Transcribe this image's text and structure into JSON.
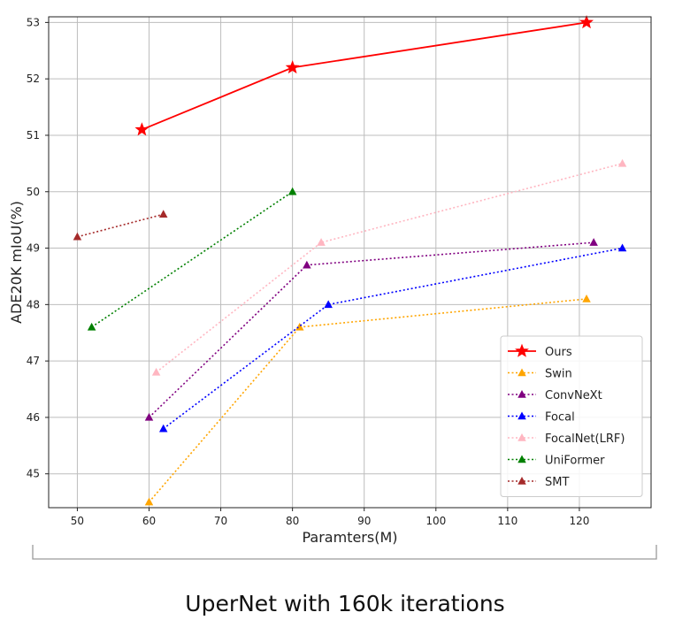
{
  "caption": "UperNet with 160k iterations",
  "chart_data": {
    "type": "line",
    "title": "",
    "xlabel": "Paramters(M)",
    "ylabel": "ADE20K mIoU(%)",
    "xlim": [
      46,
      130
    ],
    "ylim": [
      44.4,
      53.1
    ],
    "xticks": [
      50,
      60,
      70,
      80,
      90,
      100,
      110,
      120
    ],
    "yticks": [
      45,
      46,
      47,
      48,
      49,
      50,
      51,
      52,
      53
    ],
    "grid": true,
    "legend_position": "bottom-right",
    "series": [
      {
        "name": "Ours",
        "color": "#ff0000",
        "marker": "star",
        "dash": "solid",
        "x": [
          59,
          80,
          121
        ],
        "y": [
          51.1,
          52.2,
          53.0
        ]
      },
      {
        "name": "Swin",
        "color": "#ffa500",
        "marker": "triangle",
        "dash": "dotted",
        "x": [
          60,
          81,
          121
        ],
        "y": [
          44.5,
          47.6,
          48.1
        ]
      },
      {
        "name": "ConvNeXt",
        "color": "#800080",
        "marker": "triangle",
        "dash": "dotted",
        "x": [
          60,
          82,
          122
        ],
        "y": [
          46.0,
          48.7,
          49.1
        ]
      },
      {
        "name": "Focal",
        "color": "#0000ff",
        "marker": "triangle",
        "dash": "dotted",
        "x": [
          62,
          85,
          126
        ],
        "y": [
          45.8,
          48.0,
          49.0
        ]
      },
      {
        "name": "FocalNet(LRF)",
        "color": "#ffb6c1",
        "marker": "triangle",
        "dash": "dotted",
        "x": [
          61,
          84,
          126
        ],
        "y": [
          46.8,
          49.1,
          50.5
        ]
      },
      {
        "name": "UniFormer",
        "color": "#008000",
        "marker": "triangle",
        "dash": "dotted",
        "x": [
          52,
          80
        ],
        "y": [
          47.6,
          50.0
        ]
      },
      {
        "name": "SMT",
        "color": "#a52a2a",
        "marker": "triangle",
        "dash": "dotted",
        "x": [
          50,
          62
        ],
        "y": [
          49.2,
          49.6
        ]
      }
    ]
  }
}
